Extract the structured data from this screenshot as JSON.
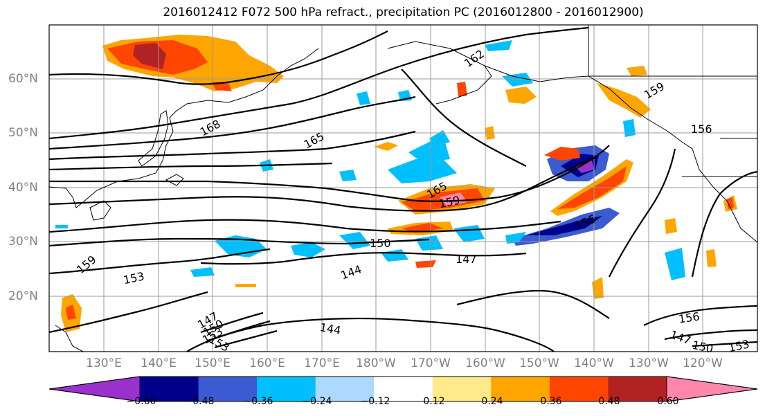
{
  "title": "2016012412 F072 500 hPa refract., precipitation PC (2016012800 - 2016012900)",
  "lat_labels": [
    "60°N",
    "50°N",
    "40°N",
    "30°N",
    "20°N"
  ],
  "lon_labels": [
    "130°E",
    "140°E",
    "150°E",
    "160°E",
    "170°E",
    "180°W",
    "170°W",
    "160°W",
    "150°W",
    "140°W",
    "130°W",
    "120°W"
  ],
  "contour_labels": [
    "168",
    "165",
    "162",
    "165",
    "159",
    "159",
    "156",
    "156",
    "153",
    "150",
    "147",
    "144",
    "144",
    "159",
    "153",
    "147",
    "150",
    "153",
    "156",
    "147",
    "150",
    "153",
    "156"
  ],
  "colorbar": {
    "ticks": [
      "−0.60",
      "−0.48",
      "−0.36",
      "−0.24",
      "−0.12",
      "0.12",
      "0.24",
      "0.36",
      "0.48",
      "0.60"
    ],
    "colors": [
      "#9932cc",
      "#00008b",
      "#3a5bd1",
      "#00bfff",
      "#add8ff",
      "#ffffff",
      "#ffe98a",
      "#ffa500",
      "#ff4500",
      "#b22222",
      "#ff88aa"
    ]
  }
}
